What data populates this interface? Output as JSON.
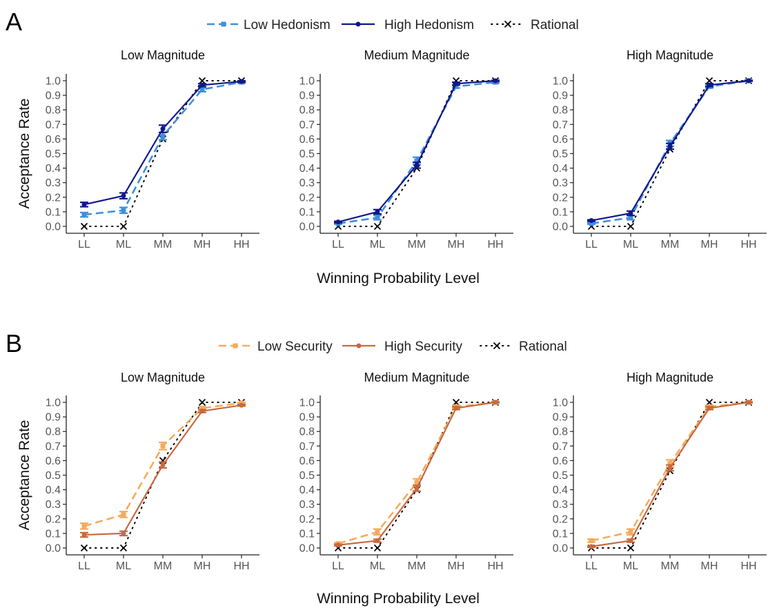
{
  "chart_data": [
    {
      "panel": "A",
      "type": "line",
      "legend": {
        "position": "top",
        "items": [
          {
            "label": "Low Hedonism",
            "style": "dashed-square"
          },
          {
            "label": "High Hedonism",
            "style": "solid-dot"
          },
          {
            "label": "Rational",
            "style": "dotted-x"
          }
        ]
      },
      "xlabel": "Winning Probability Level",
      "ylabel": "Acceptance Rate",
      "categories": [
        "LL",
        "ML",
        "MM",
        "MH",
        "HH"
      ],
      "yticks": [
        "0.0",
        "0.1",
        "0.2",
        "0.3",
        "0.4",
        "0.5",
        "0.6",
        "0.7",
        "0.8",
        "0.9",
        "1.0"
      ],
      "ylim": [
        0,
        1
      ],
      "grid": false,
      "colors": {
        "low": "#3f8fdc",
        "high": "#10178a",
        "rational": "#000000"
      },
      "facets": [
        {
          "title": "Low Magnitude",
          "series": [
            {
              "name": "Low Hedonism",
              "role": "low",
              "values": [
                0.08,
                0.11,
                0.62,
                0.94,
                0.99
              ],
              "errors": [
                0.015,
                0.02,
                0.025,
                0.015,
                0.005
              ]
            },
            {
              "name": "High Hedonism",
              "role": "high",
              "values": [
                0.15,
                0.21,
                0.67,
                0.97,
                0.995
              ],
              "errors": [
                0.015,
                0.02,
                0.025,
                0.01,
                0.005
              ]
            },
            {
              "name": "Rational",
              "role": "rational",
              "values": [
                0,
                0,
                0.6,
                1,
                1
              ],
              "errors": null
            }
          ]
        },
        {
          "title": "Medium Magnitude",
          "series": [
            {
              "name": "Low Hedonism",
              "role": "low",
              "values": [
                0.02,
                0.06,
                0.45,
                0.96,
                0.99
              ],
              "errors": [
                0.005,
                0.015,
                0.025,
                0.01,
                0.005
              ]
            },
            {
              "name": "High Hedonism",
              "role": "high",
              "values": [
                0.03,
                0.1,
                0.42,
                0.98,
                1.0
              ],
              "errors": [
                0.005,
                0.015,
                0.02,
                0.01,
                0.003
              ]
            },
            {
              "name": "Rational",
              "role": "rational",
              "values": [
                0,
                0,
                0.4,
                1,
                1
              ],
              "errors": null
            }
          ]
        },
        {
          "title": "High Magnitude",
          "series": [
            {
              "name": "Low Hedonism",
              "role": "low",
              "values": [
                0.02,
                0.06,
                0.57,
                0.96,
                1.0
              ],
              "errors": [
                0.005,
                0.015,
                0.02,
                0.01,
                0.003
              ]
            },
            {
              "name": "High Hedonism",
              "role": "high",
              "values": [
                0.04,
                0.09,
                0.55,
                0.97,
                1.0
              ],
              "errors": [
                0.005,
                0.015,
                0.02,
                0.01,
                0.003
              ]
            },
            {
              "name": "Rational",
              "role": "rational",
              "values": [
                0,
                0,
                0.53,
                1,
                1
              ],
              "errors": null
            }
          ]
        }
      ]
    },
    {
      "panel": "B",
      "type": "line",
      "legend": {
        "position": "top",
        "items": [
          {
            "label": "Low Security",
            "style": "dashed-square"
          },
          {
            "label": "High Security",
            "style": "solid-dot"
          },
          {
            "label": "Rational",
            "style": "dotted-x"
          }
        ]
      },
      "xlabel": "Winning Probability Level",
      "ylabel": "Acceptance Rate",
      "categories": [
        "LL",
        "ML",
        "MM",
        "MH",
        "HH"
      ],
      "yticks": [
        "0.0",
        "0.1",
        "0.2",
        "0.3",
        "0.4",
        "0.5",
        "0.6",
        "0.7",
        "0.8",
        "0.9",
        "1.0"
      ],
      "ylim": [
        0,
        1
      ],
      "grid": false,
      "colors": {
        "low": "#f5ab5c",
        "high": "#c8693f",
        "rational": "#000000"
      },
      "facets": [
        {
          "title": "Low Magnitude",
          "series": [
            {
              "name": "Low Security",
              "role": "low",
              "values": [
                0.15,
                0.23,
                0.7,
                0.96,
                0.995
              ],
              "errors": [
                0.02,
                0.02,
                0.025,
                0.01,
                0.005
              ]
            },
            {
              "name": "High Security",
              "role": "high",
              "values": [
                0.09,
                0.1,
                0.57,
                0.94,
                0.98
              ],
              "errors": [
                0.015,
                0.015,
                0.02,
                0.01,
                0.005
              ]
            },
            {
              "name": "Rational",
              "role": "rational",
              "values": [
                0,
                0,
                0.6,
                1,
                1
              ],
              "errors": null
            }
          ]
        },
        {
          "title": "Medium Magnitude",
          "series": [
            {
              "name": "Low Security",
              "role": "low",
              "values": [
                0.03,
                0.11,
                0.45,
                0.97,
                1.0
              ],
              "errors": [
                0.005,
                0.02,
                0.025,
                0.01,
                0.003
              ]
            },
            {
              "name": "High Security",
              "role": "high",
              "values": [
                0.02,
                0.05,
                0.41,
                0.96,
                1.0
              ],
              "errors": [
                0.005,
                0.01,
                0.02,
                0.01,
                0.003
              ]
            },
            {
              "name": "Rational",
              "role": "rational",
              "values": [
                0,
                0,
                0.4,
                1,
                1
              ],
              "errors": null
            }
          ]
        },
        {
          "title": "High Magnitude",
          "series": [
            {
              "name": "Low Security",
              "role": "low",
              "values": [
                0.05,
                0.11,
                0.58,
                0.97,
                1.0
              ],
              "errors": [
                0.01,
                0.02,
                0.025,
                0.01,
                0.003
              ]
            },
            {
              "name": "High Security",
              "role": "high",
              "values": [
                0.01,
                0.05,
                0.55,
                0.96,
                1.0
              ],
              "errors": [
                0.005,
                0.01,
                0.02,
                0.01,
                0.003
              ]
            },
            {
              "name": "Rational",
              "role": "rational",
              "values": [
                0,
                0,
                0.53,
                1,
                1
              ],
              "errors": null
            }
          ]
        }
      ]
    }
  ]
}
